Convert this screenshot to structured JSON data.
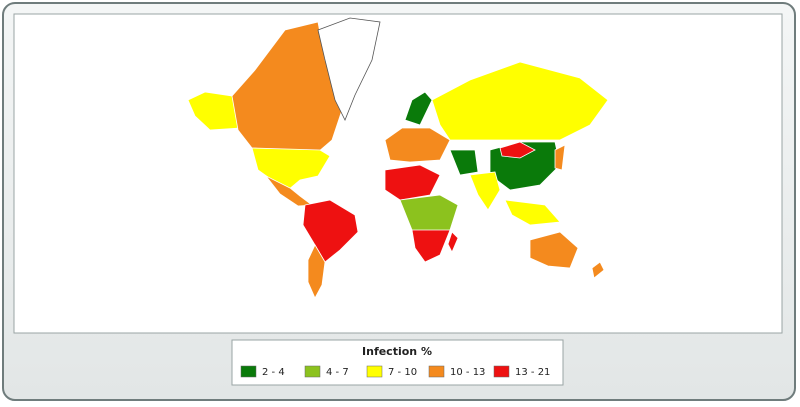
{
  "legend": {
    "title": "Infection %",
    "items": [
      {
        "label": "2 - 4",
        "color": "#0a7a0a"
      },
      {
        "label": "4 - 7",
        "color": "#8cc21e"
      },
      {
        "label": "7 - 10",
        "color": "#ffff00"
      },
      {
        "label": "10 - 13",
        "color": "#f48a1e"
      },
      {
        "label": "13 - 21",
        "color": "#ee1111"
      }
    ]
  }
}
